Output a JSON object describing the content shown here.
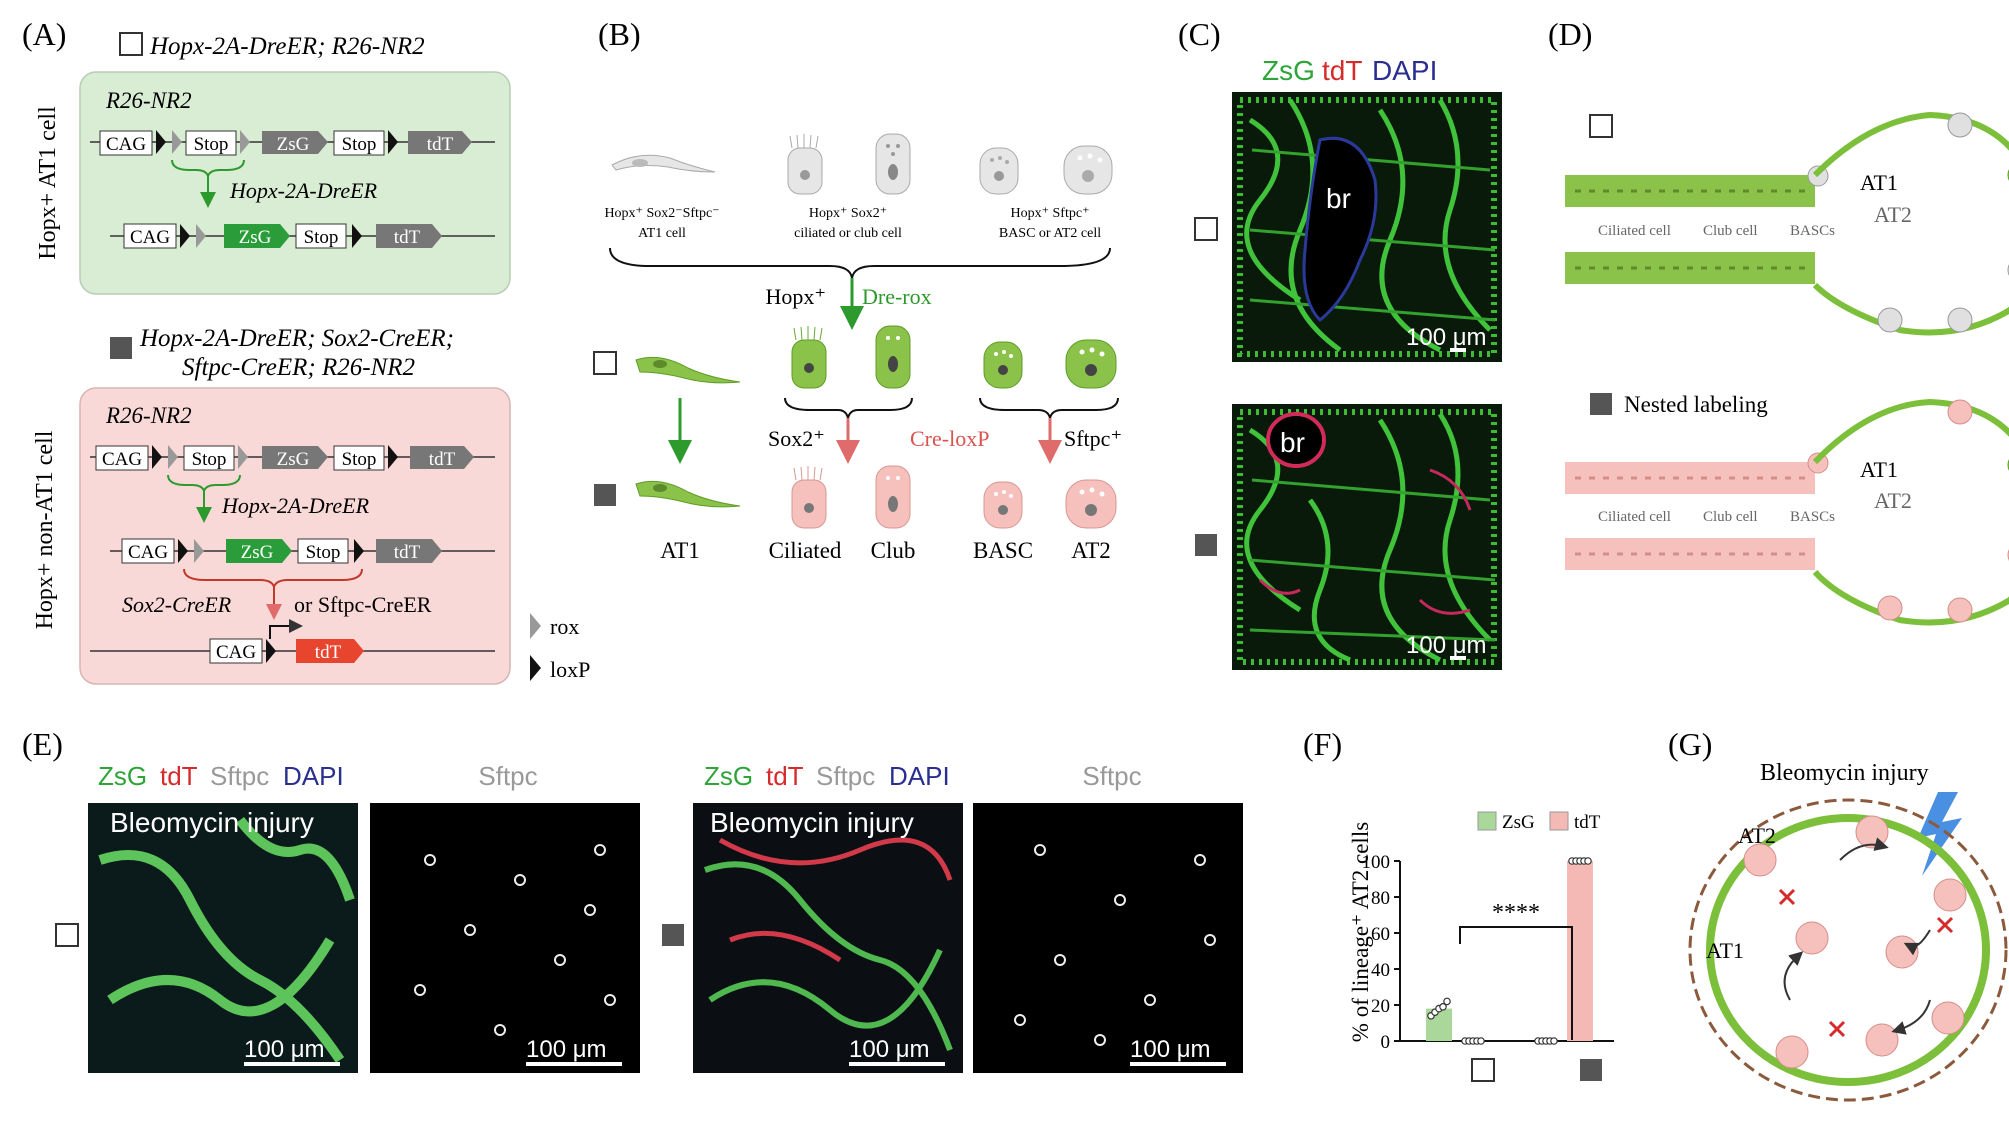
{
  "panels": {
    "a": "(A)",
    "b": "(B)",
    "c": "(C)",
    "d": "(D)",
    "e": "(E)",
    "f": "(F)",
    "g": "(G)"
  },
  "A": {
    "top_title": "Hopx-2A-DreER; R26-NR2",
    "top_side": "Hopx+ AT1 cell",
    "top_box_title": "R26-NR2",
    "bot_title_1": "Hopx-2A-DreER; Sox2-CreER;",
    "bot_title_2": "Sftpc-CreER; R26-NR2",
    "bot_side": "Hopx+ non-AT1 cell",
    "bot_box_title": "R26-NR2",
    "cag": "CAG",
    "stop": "Stop",
    "zsg": "ZsG",
    "tdt": "tdT",
    "dre": "Hopx-2A-DreER",
    "sox2cre": "Sox2-CreER",
    "or_sftpc": "or Sftpc-CreER",
    "legend_rox": "rox",
    "legend_loxp": "loxP"
  },
  "B": {
    "cap1_1": "Hopx⁺ Sox2⁻Sftpc⁻",
    "cap1_2": "AT1 cell",
    "cap2_1": "Hopx⁺ Sox2⁺",
    "cap2_2": "ciliated or club cell",
    "cap3_1": "Hopx⁺ Sftpc⁺",
    "cap3_2": "BASC or AT2 cell",
    "hopx": "Hopx⁺",
    "dre_rox": "Dre-rox",
    "sox2": "Sox2⁺",
    "cre_loxp": "Cre-loxP",
    "sftpc": "Sftpc⁺",
    "lab_at1": "AT1",
    "lab_ciliated": "Ciliated",
    "lab_club": "Club",
    "lab_basc": "BASC",
    "lab_at2": "AT2"
  },
  "C": {
    "title_zsg": "ZsG",
    "title_tdt": "tdT",
    "title_dapi": "DAPI",
    "br": "br",
    "scale": "100 μm"
  },
  "D": {
    "at1": "AT1",
    "at2": "AT2",
    "ciliated": "Ciliated cell",
    "club": "Club cell",
    "bascs": "BASCs",
    "nested": "Nested labeling"
  },
  "E": {
    "zsg": "ZsG",
    "tdt": "tdT",
    "sftpc": "Sftpc",
    "dapi": "DAPI",
    "sftpc_only": "Sftpc",
    "injury": "Bleomycin injury",
    "scale": "100 μm"
  },
  "G": {
    "title": "Bleomycin injury",
    "at2": "AT2",
    "at1": "AT1"
  },
  "chart_data": {
    "type": "bar",
    "ylabel": "% of lineage⁺ AT2 cells",
    "ylim": [
      0,
      100
    ],
    "yticks": [
      0,
      20,
      40,
      60,
      80,
      100
    ],
    "categories": [
      "open-square",
      "filled-square"
    ],
    "series": [
      {
        "name": "ZsG",
        "color": "#a9d89a",
        "values": [
          18,
          0
        ],
        "points": [
          [
            14,
            16,
            18,
            19,
            22
          ],
          [
            0,
            0,
            0,
            0,
            0
          ]
        ]
      },
      {
        "name": "tdT",
        "color": "#f4b9b5",
        "values": [
          0,
          100
        ],
        "points": [
          [
            0,
            0,
            0,
            0,
            0
          ],
          [
            100,
            100,
            100,
            100,
            100
          ]
        ]
      }
    ],
    "significance": "****",
    "legend": "top"
  }
}
